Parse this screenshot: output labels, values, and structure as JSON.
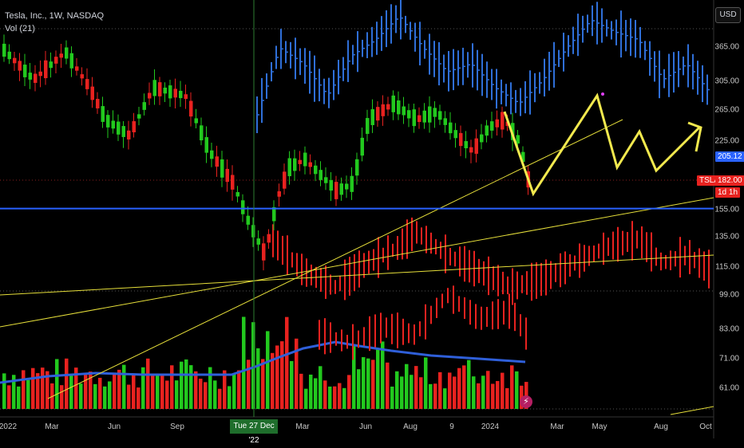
{
  "legend": {
    "title": "Tesla, Inc., 1W, NASDAQ",
    "indicator": "Vol (21)"
  },
  "currency_button": "USD",
  "price_axis": [
    "365.00",
    "305.00",
    "265.00",
    "225.00",
    "155.00",
    "135.00",
    "115.00",
    "99.00",
    "83.00",
    "71.00",
    "61.00"
  ],
  "price_badges": {
    "blue_level": "205.12",
    "ticker": "TSLA",
    "last_price": "182.00",
    "countdown": "1d 1h"
  },
  "time_axis": [
    "2022",
    "Mar",
    "Jun",
    "Sep",
    "Mar",
    "Jun",
    "Aug",
    "9",
    "2024",
    "Mar",
    "May",
    "Aug",
    "Oct"
  ],
  "crosshair_date": "Tue 27 Dec '22",
  "colors": {
    "up": "#22c91e",
    "down": "#e8221f",
    "ghost_up": "#2f6fd8",
    "ghost_down": "#e8221f",
    "horizontal_level": "#2962ff",
    "trendline": "#e6df3a",
    "volume_ma": "#2f5fd9",
    "crosshair": "#2e7d32",
    "projection": "#f2e94e"
  },
  "icons": {
    "flash": "flash-icon"
  },
  "chart_data": {
    "type": "candlestick",
    "scale": "log",
    "y_ticks": [
      365,
      305,
      265,
      225,
      155,
      135,
      115,
      99,
      83,
      71,
      61
    ],
    "horizontal_level": 205.12,
    "last_price": 182.0,
    "candles_close_sample": [
      380,
      350,
      310,
      290,
      300,
      270,
      230,
      260,
      300,
      280,
      260,
      240,
      220,
      215,
      200,
      180,
      160,
      120,
      110,
      140,
      190,
      200,
      195,
      180,
      165,
      180,
      200,
      240,
      265,
      260,
      255,
      270,
      240,
      220,
      230,
      255,
      240,
      215,
      210,
      230,
      240,
      250,
      245,
      185
    ],
    "volume_ma": "Vol (21)",
    "projection": "zig-zag"
  }
}
